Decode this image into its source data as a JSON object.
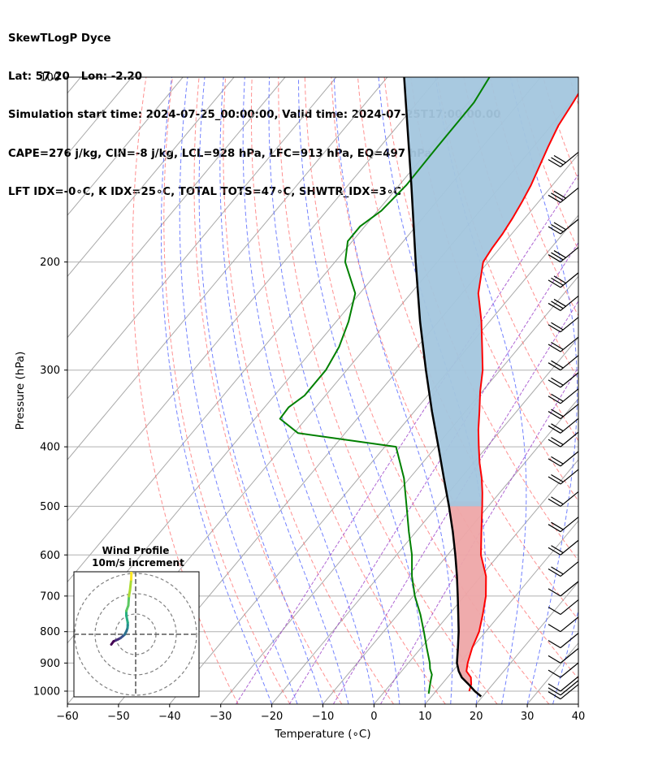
{
  "header": {
    "line1": "SkewTLogP Dyce",
    "line2": "Lat: 57.20   Lon: -2.20",
    "line3": "Simulation start time: 2024-07-25_00:00:00, Valid time: 2024-07-25T17:00:00.00",
    "line4": "CAPE=276 j/kg, CIN=-8 j/kg, LCL=928 hPa, LFC=913 hPa, EQ=497 hPa",
    "line5": "LFT IDX=-0∘C, K IDX=25∘C, TOTAL TOTS=47∘C, SHWTR_IDX=3∘C"
  },
  "colors": {
    "temperature": "#ff0000",
    "dewpoint": "#008000",
    "parcel": "#000000",
    "cape_fill": "#a3c6de",
    "cin_fill": "#eea6a8",
    "dry_adiabat": "#ff6b6b",
    "moist_adiabat": "#5b6cff",
    "mixing_ratio": "#9b40c8",
    "isotherm": "#a9a9a9"
  },
  "chart_data": {
    "type": "skewt",
    "xlabel": "Temperature (∘C)",
    "ylabel": "Pressure (hPa)",
    "xlim": [
      -60,
      40
    ],
    "ylim": [
      1050,
      100
    ],
    "y_scale": "log",
    "x_ticks": [
      "−60",
      "−50",
      "−40",
      "−30",
      "−20",
      "−10",
      "0",
      "10",
      "20",
      "30",
      "40"
    ],
    "x_tick_values": [
      -60,
      -50,
      -40,
      -30,
      -20,
      -10,
      0,
      10,
      20,
      30,
      40
    ],
    "y_ticks": [
      "1000",
      "900",
      "800",
      "700",
      "600",
      "500",
      "400",
      "300",
      "200",
      "100"
    ],
    "y_tick_values": [
      1000,
      900,
      800,
      700,
      600,
      500,
      400,
      300,
      200,
      100
    ],
    "grid": true,
    "series": [
      {
        "key": "temperature",
        "points": [
          [
            1000,
            16.5
          ],
          [
            975,
            15.8
          ],
          [
            950,
            14.6
          ],
          [
            928,
            12.7
          ],
          [
            900,
            11.6
          ],
          [
            850,
            10
          ],
          [
            800,
            8.7
          ],
          [
            750,
            6.6
          ],
          [
            700,
            4.2
          ],
          [
            650,
            1.0
          ],
          [
            600,
            -3.5
          ],
          [
            550,
            -7.2
          ],
          [
            500,
            -11.2
          ],
          [
            475,
            -13.4
          ],
          [
            450,
            -15.9
          ],
          [
            425,
            -18.8
          ],
          [
            400,
            -21.6
          ],
          [
            375,
            -24.5
          ],
          [
            350,
            -27.3
          ],
          [
            325,
            -30.4
          ],
          [
            300,
            -33.4
          ],
          [
            275,
            -37.3
          ],
          [
            250,
            -41.6
          ],
          [
            225,
            -46.8
          ],
          [
            200,
            -51.0
          ],
          [
            190,
            -51.5
          ],
          [
            180,
            -51.8
          ],
          [
            170,
            -52.4
          ],
          [
            160,
            -53.2
          ],
          [
            150,
            -54.2
          ],
          [
            140,
            -55.6
          ],
          [
            130,
            -57.1
          ],
          [
            120,
            -58.6
          ],
          [
            110,
            -59.5
          ],
          [
            100,
            -60.6
          ]
        ]
      },
      {
        "key": "dewpoint",
        "points": [
          [
            1010,
            9.0
          ],
          [
            985,
            8.1
          ],
          [
            960,
            7.2
          ],
          [
            940,
            6.5
          ],
          [
            920,
            5.2
          ],
          [
            900,
            4.2
          ],
          [
            850,
            1.1
          ],
          [
            800,
            -2.1
          ],
          [
            750,
            -5.6
          ],
          [
            700,
            -9.7
          ],
          [
            650,
            -13.5
          ],
          [
            600,
            -17.0
          ],
          [
            550,
            -21.4
          ],
          [
            500,
            -26.0
          ],
          [
            450,
            -31.1
          ],
          [
            400,
            -37.8
          ],
          [
            380,
            -59.2
          ],
          [
            360,
            -65.1
          ],
          [
            345,
            -65.3
          ],
          [
            330,
            -64.1
          ],
          [
            300,
            -64.1
          ],
          [
            275,
            -65.3
          ],
          [
            250,
            -67.6
          ],
          [
            225,
            -70.9
          ],
          [
            200,
            -78.0
          ],
          [
            185,
            -80.9
          ],
          [
            175,
            -80.9
          ],
          [
            165,
            -79.3
          ],
          [
            150,
            -78.6
          ],
          [
            130,
            -78.8
          ],
          [
            110,
            -78.9
          ],
          [
            100,
            -80.0
          ]
        ]
      },
      {
        "key": "parcel",
        "points": [
          [
            1020,
            19.7
          ],
          [
            1000,
            17.6
          ],
          [
            975,
            15.3
          ],
          [
            950,
            12.8
          ],
          [
            928,
            11.2
          ],
          [
            900,
            9.5
          ],
          [
            850,
            7.2
          ],
          [
            800,
            4.7
          ],
          [
            750,
            1.8
          ],
          [
            700,
            -1.3
          ],
          [
            650,
            -4.7
          ],
          [
            600,
            -8.5
          ],
          [
            550,
            -12.8
          ],
          [
            500,
            -17.7
          ],
          [
            450,
            -23.3
          ],
          [
            400,
            -29.5
          ],
          [
            350,
            -36.6
          ],
          [
            300,
            -44.5
          ],
          [
            250,
            -53.6
          ],
          [
            200,
            -64.2
          ],
          [
            150,
            -77.6
          ],
          [
            100,
            -96.7
          ]
        ]
      }
    ],
    "wind_barbs_pressure": [
      140,
      160,
      180,
      200,
      220,
      240,
      260,
      280,
      300,
      320,
      340,
      360,
      380,
      400,
      430,
      460,
      500,
      550,
      600,
      650,
      700,
      750,
      800,
      850,
      900,
      950,
      1000,
      1015,
      1030
    ],
    "wind_profile": {
      "title": "Wind Profile",
      "subtitle": "10m/s increment",
      "ring_speeds": [
        10,
        20,
        30
      ],
      "hodograph_points": [
        [
          -12,
          -5
        ],
        [
          -10.9,
          -3.5
        ],
        [
          -9.8,
          -3
        ],
        [
          -8.7,
          -2.5
        ],
        [
          -7.4,
          -1.8
        ],
        [
          -6.3,
          -0.9
        ],
        [
          -5.5,
          -0.2
        ],
        [
          -4.5,
          1.6
        ],
        [
          -4,
          3.1
        ],
        [
          -3.9,
          4.4
        ],
        [
          -3.9,
          5.8
        ],
        [
          -4.6,
          9.2
        ],
        [
          -4.6,
          11.5
        ],
        [
          -3.6,
          14.2
        ],
        [
          -3.3,
          18.8
        ],
        [
          -2.8,
          21.7
        ],
        [
          -2.2,
          27.0
        ],
        [
          -2.1,
          30.0
        ],
        [
          -2.5,
          35.0
        ]
      ]
    }
  }
}
